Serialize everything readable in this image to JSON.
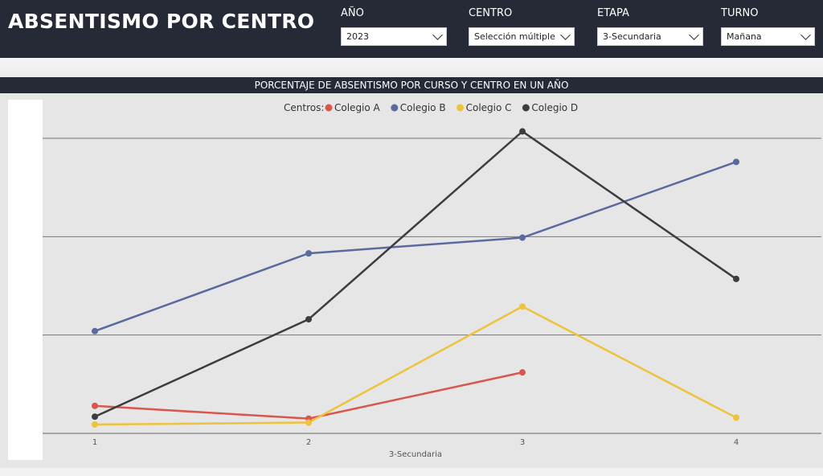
{
  "header": {
    "title": "ABSENTISMO POR CENTRO",
    "filters": [
      {
        "label": "AÑO",
        "value": "2023"
      },
      {
        "label": "CENTRO",
        "value": "Selección múltiple"
      },
      {
        "label": "ETAPA",
        "value": "3-Secundaria"
      },
      {
        "label": "TURNO",
        "value": "Mañana"
      }
    ]
  },
  "chart_data": {
    "type": "line",
    "title": "PORCENTAJE DE ABSENTISMO POR CURSO Y CENTRO EN UN AÑO",
    "xlabel": "3-Secundaria",
    "ylabel": "",
    "legend_title": "Centros:",
    "legend_position": "top-center",
    "grid": true,
    "x": [
      "1",
      "2",
      "3",
      "4"
    ],
    "ylim": [
      0,
      3
    ],
    "yticks": [
      0,
      1,
      2,
      3
    ],
    "series": [
      {
        "name": "Colegio A",
        "color": "#d9564e",
        "values": [
          0.28,
          0.15,
          0.62,
          null
        ]
      },
      {
        "name": "Colegio B",
        "color": "#5a6a9e",
        "values": [
          1.04,
          1.83,
          1.99,
          2.76
        ]
      },
      {
        "name": "Colegio C",
        "color": "#ecc33a",
        "values": [
          0.09,
          0.11,
          1.29,
          0.16
        ]
      },
      {
        "name": "Colegio D",
        "color": "#3d3d40",
        "values": [
          0.17,
          1.16,
          3.07,
          1.57
        ]
      }
    ]
  }
}
